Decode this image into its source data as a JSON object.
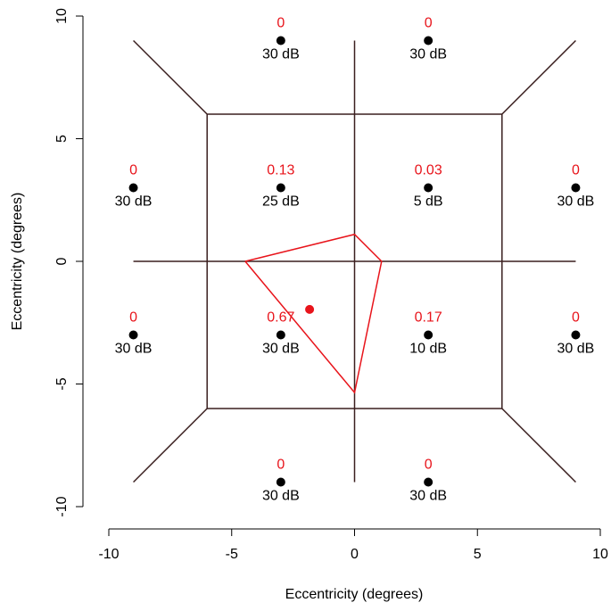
{
  "chart_data": {
    "type": "scatter",
    "xlabel": "Eccentricity (degrees)",
    "ylabel": "Eccentricity (degrees)",
    "xlim": [
      -10,
      10
    ],
    "ylim": [
      -10,
      10
    ],
    "xticks": [
      -10,
      -5,
      0,
      5,
      10
    ],
    "yticks": [
      -10,
      -5,
      0,
      5,
      10
    ],
    "x": [
      -3,
      3,
      -9,
      -3,
      3,
      9,
      -9,
      -3,
      3,
      9,
      -3,
      3
    ],
    "y": [
      9,
      9,
      3,
      3,
      3,
      3,
      -3,
      -3,
      -3,
      -3,
      -9,
      -9
    ],
    "values": [
      0,
      0,
      0,
      0.13,
      0.03,
      0,
      0,
      0.67,
      0.17,
      0,
      0,
      0
    ],
    "point_labels": [
      "30 dB",
      "30 dB",
      "30 dB",
      "25 dB",
      "5 dB",
      "30 dB",
      "30 dB",
      "30 dB",
      "10 dB",
      "30 dB",
      "30 dB",
      "30 dB"
    ],
    "point_color": "#000000",
    "value_color": "#e8141b",
    "segments": [
      {
        "x": [
          -6,
          6,
          6,
          -6,
          -6
        ],
        "y": [
          6,
          6,
          -6,
          -6,
          6
        ]
      },
      {
        "x": [
          -6,
          -9
        ],
        "y": [
          6,
          9
        ]
      },
      {
        "x": [
          6,
          9
        ],
        "y": [
          6,
          9
        ]
      },
      {
        "x": [
          6,
          9
        ],
        "y": [
          -6,
          -9
        ]
      },
      {
        "x": [
          -6,
          -9
        ],
        "y": [
          -6,
          -9
        ]
      },
      {
        "x": [
          0,
          0
        ],
        "y": [
          9,
          -9
        ]
      },
      {
        "x": [
          -9,
          9
        ],
        "y": [
          0,
          0
        ]
      }
    ],
    "segment_color": "#3a1f1f",
    "polygon": {
      "x": [
        -4.45,
        0,
        1.1,
        0,
        -4.45
      ],
      "y": [
        0,
        1.1,
        0,
        -5.35,
        0
      ],
      "color": "#e8141b"
    },
    "estimate": {
      "x": -1.83,
      "y": -1.96,
      "color": "#e8141b"
    }
  }
}
